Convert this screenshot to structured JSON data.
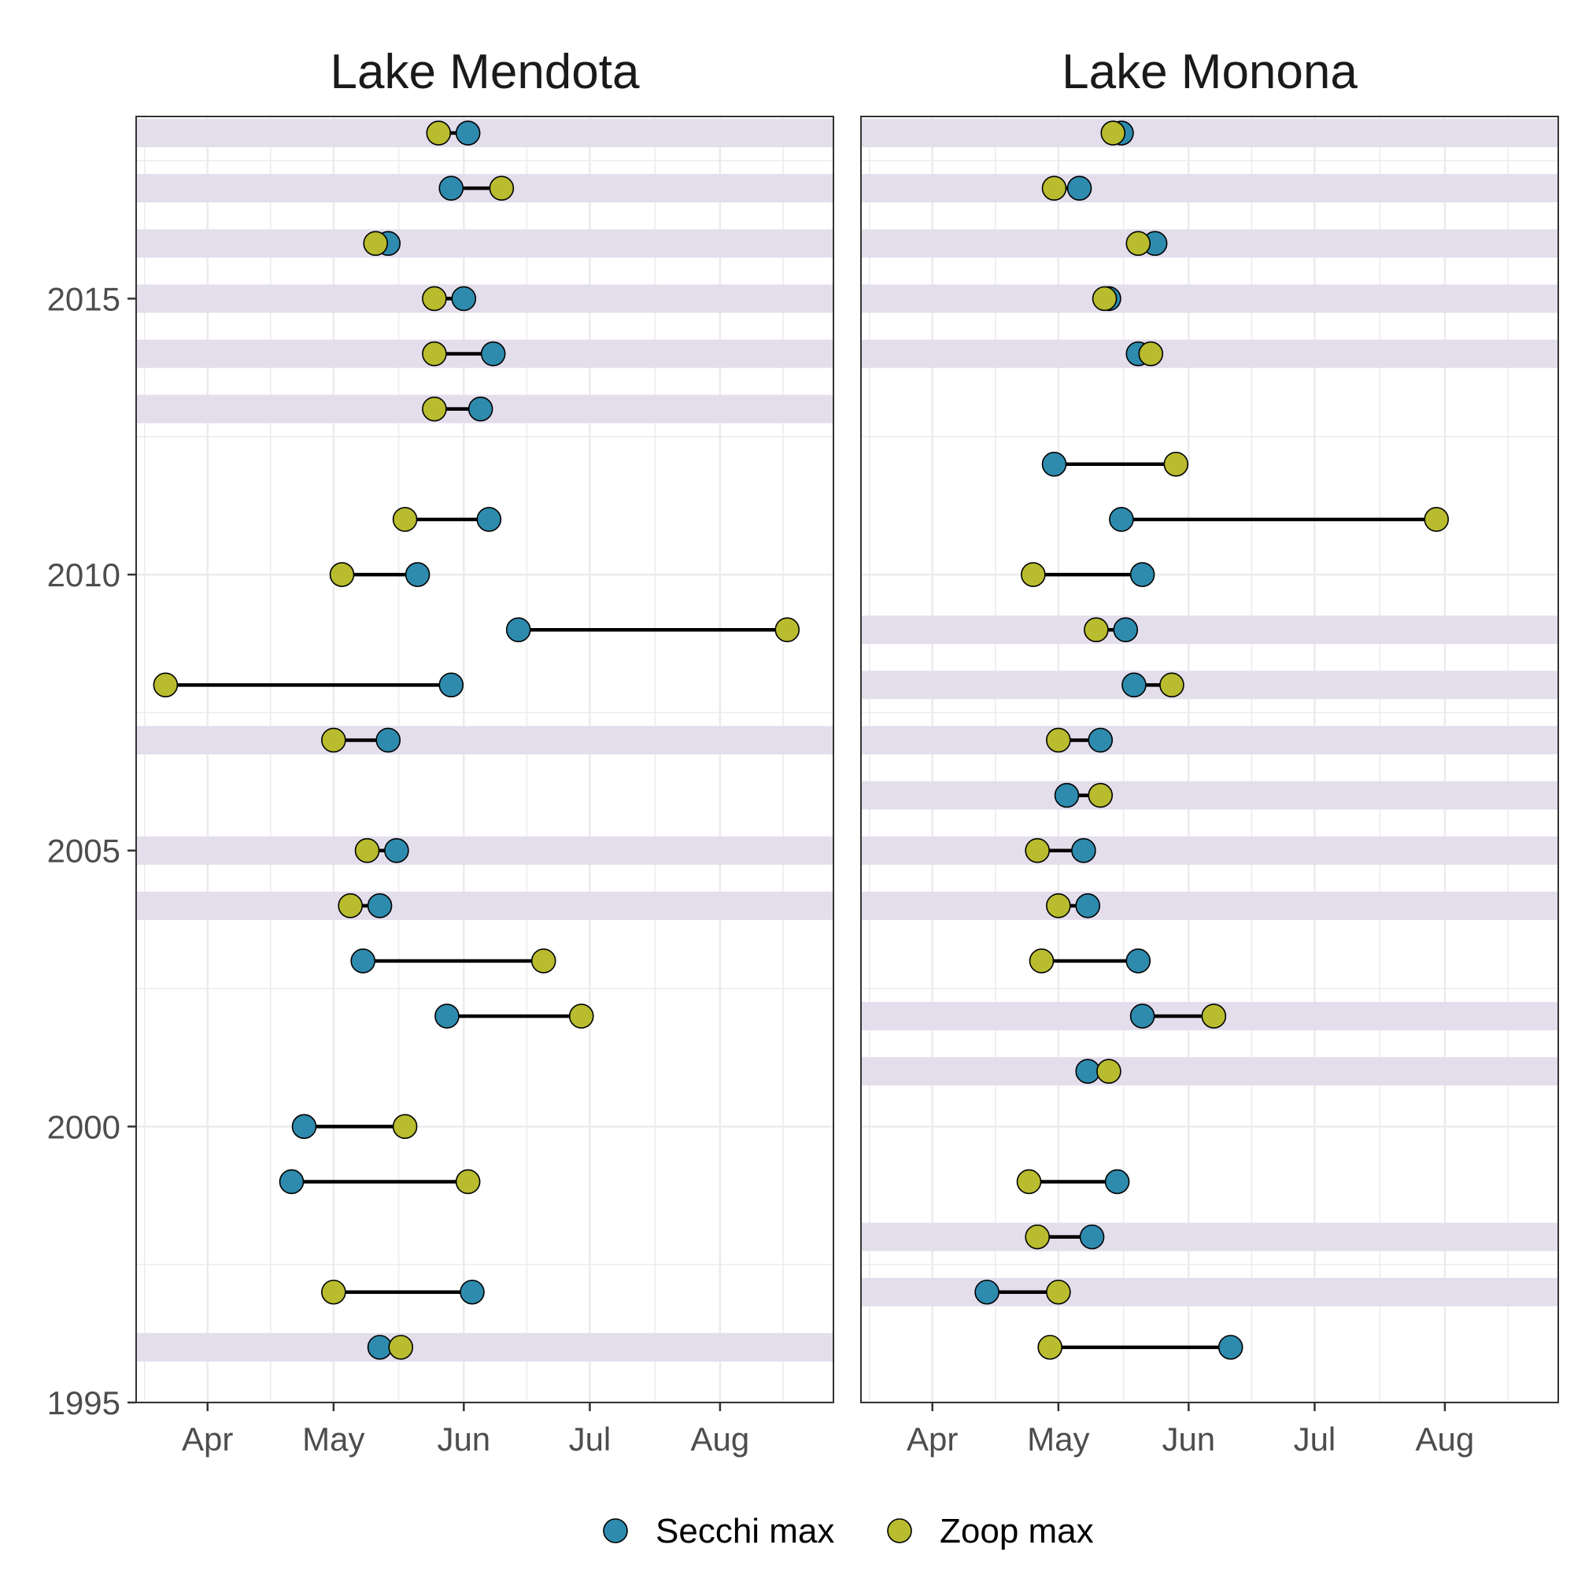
{
  "legend": {
    "secchi_label": "Secchi max",
    "zoop_label": "Zoop max"
  },
  "colors": {
    "secchi": "#2E8BAE",
    "zoop": "#B8BC2E",
    "highlight": "#E3DDEC",
    "segment": "#000000",
    "grid": "#EBEBEB",
    "panel_border": "#333333"
  },
  "chart_data": [
    {
      "type": "scatter",
      "title": "Lake Mendota",
      "xlabel": "",
      "ylabel": "",
      "x_ticks": [
        "Apr",
        "May",
        "Jun",
        "Jul",
        "Aug"
      ],
      "y_ticks": [
        "1995",
        "2000",
        "2005",
        "2010",
        "2015"
      ],
      "xlim": [
        "Mar 15",
        "Aug 28"
      ],
      "ylim": [
        1995,
        2018.3
      ],
      "grid": true,
      "highlight_years": [
        1996,
        2004,
        2005,
        2007,
        2013,
        2014,
        2015,
        2016,
        2017,
        2018
      ],
      "series": [
        {
          "name": "Secchi max",
          "points": [
            {
              "year": 1996,
              "date": "May 12"
            },
            {
              "year": 1997,
              "date": "Jun 3"
            },
            {
              "year": 1999,
              "date": "Apr 21"
            },
            {
              "year": 2000,
              "date": "Apr 24"
            },
            {
              "year": 2002,
              "date": "May 28"
            },
            {
              "year": 2003,
              "date": "May 8"
            },
            {
              "year": 2004,
              "date": "May 12"
            },
            {
              "year": 2005,
              "date": "May 16"
            },
            {
              "year": 2007,
              "date": "May 14"
            },
            {
              "year": 2008,
              "date": "May 29"
            },
            {
              "year": 2009,
              "date": "Jun 14"
            },
            {
              "year": 2010,
              "date": "May 21"
            },
            {
              "year": 2011,
              "date": "Jun 7"
            },
            {
              "year": 2013,
              "date": "Jun 5"
            },
            {
              "year": 2014,
              "date": "Jun 8"
            },
            {
              "year": 2015,
              "date": "Jun 1"
            },
            {
              "year": 2016,
              "date": "May 14"
            },
            {
              "year": 2017,
              "date": "May 29"
            },
            {
              "year": 2018,
              "date": "Jun 2"
            }
          ]
        },
        {
          "name": "Zoop max",
          "points": [
            {
              "year": 1996,
              "date": "May 17"
            },
            {
              "year": 1997,
              "date": "May 1"
            },
            {
              "year": 1999,
              "date": "Jun 2"
            },
            {
              "year": 2000,
              "date": "May 18"
            },
            {
              "year": 2002,
              "date": "Jun 29"
            },
            {
              "year": 2003,
              "date": "Jun 20"
            },
            {
              "year": 2004,
              "date": "May 5"
            },
            {
              "year": 2005,
              "date": "May 9"
            },
            {
              "year": 2007,
              "date": "May 1"
            },
            {
              "year": 2008,
              "date": "Mar 22"
            },
            {
              "year": 2009,
              "date": "Aug 17"
            },
            {
              "year": 2010,
              "date": "May 3"
            },
            {
              "year": 2011,
              "date": "May 18"
            },
            {
              "year": 2013,
              "date": "May 25"
            },
            {
              "year": 2014,
              "date": "May 25"
            },
            {
              "year": 2015,
              "date": "May 25"
            },
            {
              "year": 2016,
              "date": "May 11"
            },
            {
              "year": 2017,
              "date": "Jun 10"
            },
            {
              "year": 2018,
              "date": "May 26"
            }
          ]
        }
      ]
    },
    {
      "type": "scatter",
      "title": "Lake Monona",
      "xlabel": "",
      "ylabel": "",
      "x_ticks": [
        "Apr",
        "May",
        "Jun",
        "Jul",
        "Aug"
      ],
      "y_ticks": [
        "1995",
        "2000",
        "2005",
        "2010",
        "2015"
      ],
      "xlim": [
        "Mar 15",
        "Aug 28"
      ],
      "ylim": [
        1995,
        2018.3
      ],
      "grid": true,
      "highlight_years": [
        1997,
        1998,
        2001,
        2002,
        2004,
        2005,
        2006,
        2007,
        2008,
        2009,
        2014,
        2015,
        2016,
        2017,
        2018
      ],
      "series": [
        {
          "name": "Secchi max",
          "points": [
            {
              "year": 1996,
              "date": "Jun 11"
            },
            {
              "year": 1997,
              "date": "Apr 14"
            },
            {
              "year": 1998,
              "date": "May 9"
            },
            {
              "year": 1999,
              "date": "May 15"
            },
            {
              "year": 2001,
              "date": "May 8"
            },
            {
              "year": 2002,
              "date": "May 21"
            },
            {
              "year": 2003,
              "date": "May 20"
            },
            {
              "year": 2004,
              "date": "May 8"
            },
            {
              "year": 2005,
              "date": "May 7"
            },
            {
              "year": 2006,
              "date": "May 3"
            },
            {
              "year": 2007,
              "date": "May 11"
            },
            {
              "year": 2008,
              "date": "May 19"
            },
            {
              "year": 2009,
              "date": "May 17"
            },
            {
              "year": 2010,
              "date": "May 21"
            },
            {
              "year": 2011,
              "date": "May 16"
            },
            {
              "year": 2012,
              "date": "Apr 30"
            },
            {
              "year": 2014,
              "date": "May 20"
            },
            {
              "year": 2015,
              "date": "May 13"
            },
            {
              "year": 2016,
              "date": "May 24"
            },
            {
              "year": 2017,
              "date": "May 6"
            },
            {
              "year": 2018,
              "date": "May 16"
            }
          ]
        },
        {
          "name": "Zoop max",
          "points": [
            {
              "year": 1996,
              "date": "Apr 29"
            },
            {
              "year": 1997,
              "date": "May 1"
            },
            {
              "year": 1998,
              "date": "Apr 26"
            },
            {
              "year": 1999,
              "date": "Apr 24"
            },
            {
              "year": 2001,
              "date": "May 13"
            },
            {
              "year": 2002,
              "date": "Jun 7"
            },
            {
              "year": 2003,
              "date": "Apr 27"
            },
            {
              "year": 2004,
              "date": "May 1"
            },
            {
              "year": 2005,
              "date": "Apr 26"
            },
            {
              "year": 2006,
              "date": "May 11"
            },
            {
              "year": 2007,
              "date": "May 1"
            },
            {
              "year": 2008,
              "date": "May 28"
            },
            {
              "year": 2009,
              "date": "May 10"
            },
            {
              "year": 2010,
              "date": "Apr 25"
            },
            {
              "year": 2011,
              "date": "Jul 30"
            },
            {
              "year": 2012,
              "date": "May 29"
            },
            {
              "year": 2014,
              "date": "May 23"
            },
            {
              "year": 2015,
              "date": "May 12"
            },
            {
              "year": 2016,
              "date": "May 20"
            },
            {
              "year": 2017,
              "date": "Apr 30"
            },
            {
              "year": 2018,
              "date": "May 14"
            }
          ]
        }
      ]
    }
  ]
}
